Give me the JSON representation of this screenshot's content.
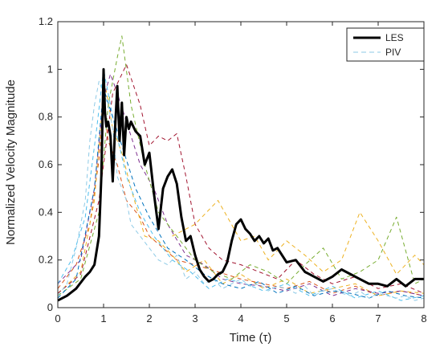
{
  "chart_data": {
    "type": "line",
    "xlabel": "Time (τ)",
    "ylabel": "Normalized Velocity Magnitude",
    "xlim": [
      0,
      8
    ],
    "ylim": [
      0,
      1.2
    ],
    "xticks": [
      "0",
      "1",
      "2",
      "3",
      "4",
      "5",
      "6",
      "7",
      "8"
    ],
    "yticks": [
      "0",
      "0.2",
      "0.4",
      "0.6",
      "0.8",
      "1",
      "1.2"
    ],
    "grid": false,
    "legend_position": "top-right",
    "series": [
      {
        "name": "LES",
        "style": "solid",
        "color": "#000000",
        "x": [
          0,
          0.2,
          0.4,
          0.6,
          0.7,
          0.8,
          0.9,
          0.95,
          1.0,
          1.03,
          1.06,
          1.1,
          1.15,
          1.2,
          1.25,
          1.3,
          1.35,
          1.4,
          1.45,
          1.5,
          1.55,
          1.6,
          1.7,
          1.8,
          1.9,
          2.0,
          2.1,
          2.2,
          2.3,
          2.4,
          2.5,
          2.6,
          2.7,
          2.8,
          2.9,
          3.0,
          3.1,
          3.2,
          3.3,
          3.4,
          3.5,
          3.6,
          3.7,
          3.8,
          3.9,
          4.0,
          4.1,
          4.2,
          4.3,
          4.4,
          4.5,
          4.6,
          4.7,
          4.8,
          5.0,
          5.2,
          5.4,
          5.6,
          5.8,
          6.0,
          6.2,
          6.4,
          6.6,
          6.8,
          7.0,
          7.2,
          7.4,
          7.6,
          7.8,
          8.0
        ],
        "y": [
          0.03,
          0.05,
          0.08,
          0.13,
          0.15,
          0.18,
          0.3,
          0.55,
          1.0,
          0.82,
          0.76,
          0.78,
          0.72,
          0.53,
          0.75,
          0.93,
          0.7,
          0.86,
          0.64,
          0.8,
          0.75,
          0.78,
          0.74,
          0.72,
          0.6,
          0.65,
          0.48,
          0.33,
          0.5,
          0.55,
          0.58,
          0.52,
          0.38,
          0.28,
          0.3,
          0.22,
          0.16,
          0.13,
          0.11,
          0.12,
          0.14,
          0.15,
          0.19,
          0.28,
          0.35,
          0.37,
          0.33,
          0.31,
          0.28,
          0.3,
          0.27,
          0.29,
          0.24,
          0.25,
          0.19,
          0.2,
          0.15,
          0.13,
          0.11,
          0.13,
          0.16,
          0.14,
          0.12,
          0.1,
          0.1,
          0.09,
          0.12,
          0.09,
          0.12,
          0.12
        ]
      },
      {
        "name": "PIV",
        "style": "dashed",
        "color": "#8ecae6",
        "x": [
          0,
          0.2,
          0.4,
          0.6,
          0.7,
          0.8,
          0.9,
          1.0,
          1.1,
          1.2,
          1.3,
          1.4,
          1.5,
          1.6,
          1.8,
          2.0,
          2.2,
          2.4,
          2.6,
          2.8,
          3.0,
          3.2,
          3.4,
          3.6,
          3.8,
          4.0,
          4.2,
          4.4,
          4.6,
          4.8,
          5.0,
          5.2,
          5.4,
          5.6,
          5.8,
          6.0,
          6.2,
          6.4,
          6.6,
          6.8,
          7.0,
          7.2,
          7.4,
          7.6,
          7.8,
          8.0
        ],
        "y": [
          0.05,
          0.1,
          0.25,
          0.45,
          0.7,
          0.85,
          0.95,
          0.9,
          0.85,
          0.75,
          0.55,
          0.5,
          0.45,
          0.35,
          0.3,
          0.25,
          0.2,
          0.18,
          0.22,
          0.12,
          0.15,
          0.1,
          0.12,
          0.08,
          0.1,
          0.12,
          0.09,
          0.1,
          0.07,
          0.09,
          0.08,
          0.06,
          0.09,
          0.05,
          0.07,
          0.08,
          0.06,
          0.05,
          0.07,
          0.04,
          0.06,
          0.05,
          0.04,
          0.05,
          0.03,
          0.04
        ]
      }
    ],
    "extra_dashed_traces": [
      {
        "color": "#d95319",
        "x": [
          0,
          0.4,
          0.7,
          0.9,
          1.0,
          1.1,
          1.3,
          1.5,
          1.8,
          2.0,
          2.3,
          2.6,
          3.0,
          3.5,
          4.0,
          4.5,
          5.0,
          5.5,
          6.0,
          6.5,
          7.0,
          7.5,
          8.0
        ],
        "y": [
          0.08,
          0.18,
          0.35,
          0.62,
          0.85,
          0.7,
          0.6,
          0.45,
          0.38,
          0.3,
          0.25,
          0.2,
          0.18,
          0.15,
          0.12,
          0.1,
          0.08,
          0.11,
          0.06,
          0.09,
          0.05,
          0.07,
          0.05
        ]
      },
      {
        "color": "#edb120",
        "x": [
          0,
          0.5,
          0.8,
          0.95,
          1.05,
          1.2,
          1.4,
          1.6,
          1.9,
          2.2,
          2.5,
          2.8,
          3.2,
          3.6,
          4.0,
          4.5,
          5.0,
          5.5,
          6.0,
          6.5,
          7.0,
          7.5,
          8.0
        ],
        "y": [
          0.06,
          0.15,
          0.45,
          0.8,
          0.92,
          0.75,
          0.65,
          0.5,
          0.3,
          0.28,
          0.22,
          0.15,
          0.2,
          0.1,
          0.14,
          0.08,
          0.12,
          0.06,
          0.08,
          0.1,
          0.05,
          0.07,
          0.06
        ]
      },
      {
        "color": "#7e2f8e",
        "x": [
          0,
          0.5,
          0.8,
          1.0,
          1.15,
          1.3,
          1.5,
          1.8,
          2.1,
          2.4,
          2.8,
          3.2,
          3.6,
          4.0,
          4.5,
          5.0,
          5.5,
          6.0,
          6.5,
          7.0,
          7.5,
          8.0
        ],
        "y": [
          0.1,
          0.2,
          0.5,
          0.88,
          0.98,
          0.9,
          0.78,
          0.6,
          0.5,
          0.35,
          0.22,
          0.18,
          0.12,
          0.1,
          0.09,
          0.07,
          0.1,
          0.05,
          0.08,
          0.06,
          0.07,
          0.05
        ]
      },
      {
        "color": "#77ac30",
        "x": [
          0,
          0.5,
          0.9,
          1.1,
          1.3,
          1.4,
          1.6,
          1.9,
          2.2,
          2.6,
          3.0,
          3.4,
          3.8,
          4.2,
          4.6,
          5.0,
          5.4,
          5.8,
          6.2,
          6.6,
          7.0,
          7.4,
          7.8,
          8.0
        ],
        "y": [
          0.05,
          0.12,
          0.4,
          0.85,
          1.05,
          1.14,
          0.85,
          0.6,
          0.4,
          0.3,
          0.2,
          0.15,
          0.12,
          0.18,
          0.15,
          0.1,
          0.18,
          0.25,
          0.12,
          0.15,
          0.2,
          0.38,
          0.1,
          0.12
        ]
      },
      {
        "color": "#a2142f",
        "x": [
          0,
          0.5,
          0.9,
          1.2,
          1.5,
          1.8,
          2.0,
          2.2,
          2.4,
          2.6,
          2.8,
          3.0,
          3.3,
          3.6,
          4.0,
          4.4,
          4.8,
          5.2,
          5.6,
          6.0,
          6.5,
          7.0,
          7.5,
          8.0
        ],
        "y": [
          0.06,
          0.14,
          0.45,
          0.9,
          1.02,
          0.85,
          0.68,
          0.72,
          0.7,
          0.73,
          0.55,
          0.35,
          0.25,
          0.2,
          0.18,
          0.15,
          0.12,
          0.2,
          0.14,
          0.1,
          0.13,
          0.08,
          0.1,
          0.06
        ]
      },
      {
        "color": "#4dbeee",
        "x": [
          0,
          0.3,
          0.6,
          0.85,
          1.0,
          1.2,
          1.5,
          1.8,
          2.1,
          2.5,
          2.9,
          3.3,
          3.7,
          4.1,
          4.5,
          5.0,
          5.5,
          6.0,
          6.5,
          7.0,
          7.5,
          8.0
        ],
        "y": [
          0.1,
          0.2,
          0.38,
          0.75,
          1.0,
          0.8,
          0.55,
          0.4,
          0.3,
          0.2,
          0.15,
          0.08,
          0.12,
          0.1,
          0.07,
          0.1,
          0.05,
          0.09,
          0.04,
          0.07,
          0.03,
          0.05
        ]
      },
      {
        "color": "#0072bd",
        "x": [
          0,
          0.4,
          0.8,
          1.0,
          1.2,
          1.4,
          1.7,
          2.0,
          2.4,
          2.8,
          3.2,
          3.6,
          4.0,
          4.4,
          4.8,
          5.2,
          5.6,
          6.0,
          6.4,
          6.8,
          7.2,
          7.6,
          8.0
        ],
        "y": [
          0.04,
          0.12,
          0.5,
          0.92,
          0.8,
          0.68,
          0.5,
          0.38,
          0.25,
          0.2,
          0.14,
          0.1,
          0.08,
          0.11,
          0.06,
          0.09,
          0.05,
          0.07,
          0.06,
          0.04,
          0.07,
          0.05,
          0.04
        ]
      },
      {
        "color": "#edb120",
        "x": [
          2.5,
          3.0,
          3.5,
          4.0,
          4.3,
          4.6,
          5.0,
          5.4,
          5.8,
          6.2,
          6.6,
          7.0,
          7.4,
          7.8,
          8.0
        ],
        "y": [
          0.3,
          0.35,
          0.45,
          0.28,
          0.3,
          0.2,
          0.28,
          0.22,
          0.15,
          0.2,
          0.4,
          0.28,
          0.14,
          0.22,
          0.18
        ]
      }
    ]
  }
}
